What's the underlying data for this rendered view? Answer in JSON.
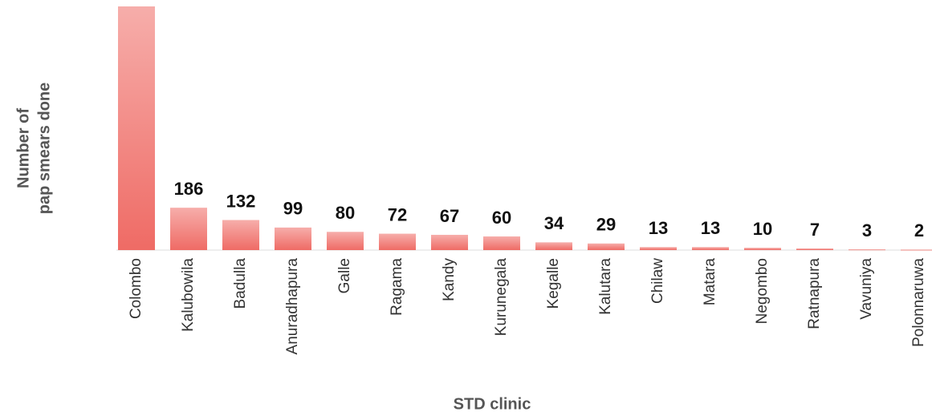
{
  "chart_data": {
    "type": "bar",
    "xlabel": "STD clinic",
    "ylabel": [
      "Number of",
      "pap smears done"
    ],
    "categories": [
      "Colombo",
      "Kalubowila",
      "Badulla",
      "Anuradhapura",
      "Galle",
      "Ragama",
      "Kandy",
      "Kurunegala",
      "Kegalle",
      "Kalutara",
      "Chilaw",
      "Matara",
      "Negombo",
      "Ratnapura",
      "Vavuniya",
      "Polonnaruwa"
    ],
    "values": [
      1070,
      186,
      132,
      99,
      80,
      72,
      67,
      60,
      34,
      29,
      13,
      13,
      10,
      7,
      3,
      2
    ],
    "value_labels": [
      null,
      "186",
      "132",
      "99",
      "80",
      "72",
      "67",
      "60",
      "34",
      "29",
      "13",
      "13",
      "10",
      "7",
      "3",
      "2"
    ],
    "color": "#ef6b65",
    "ylim": [
      0,
      1070
    ]
  }
}
